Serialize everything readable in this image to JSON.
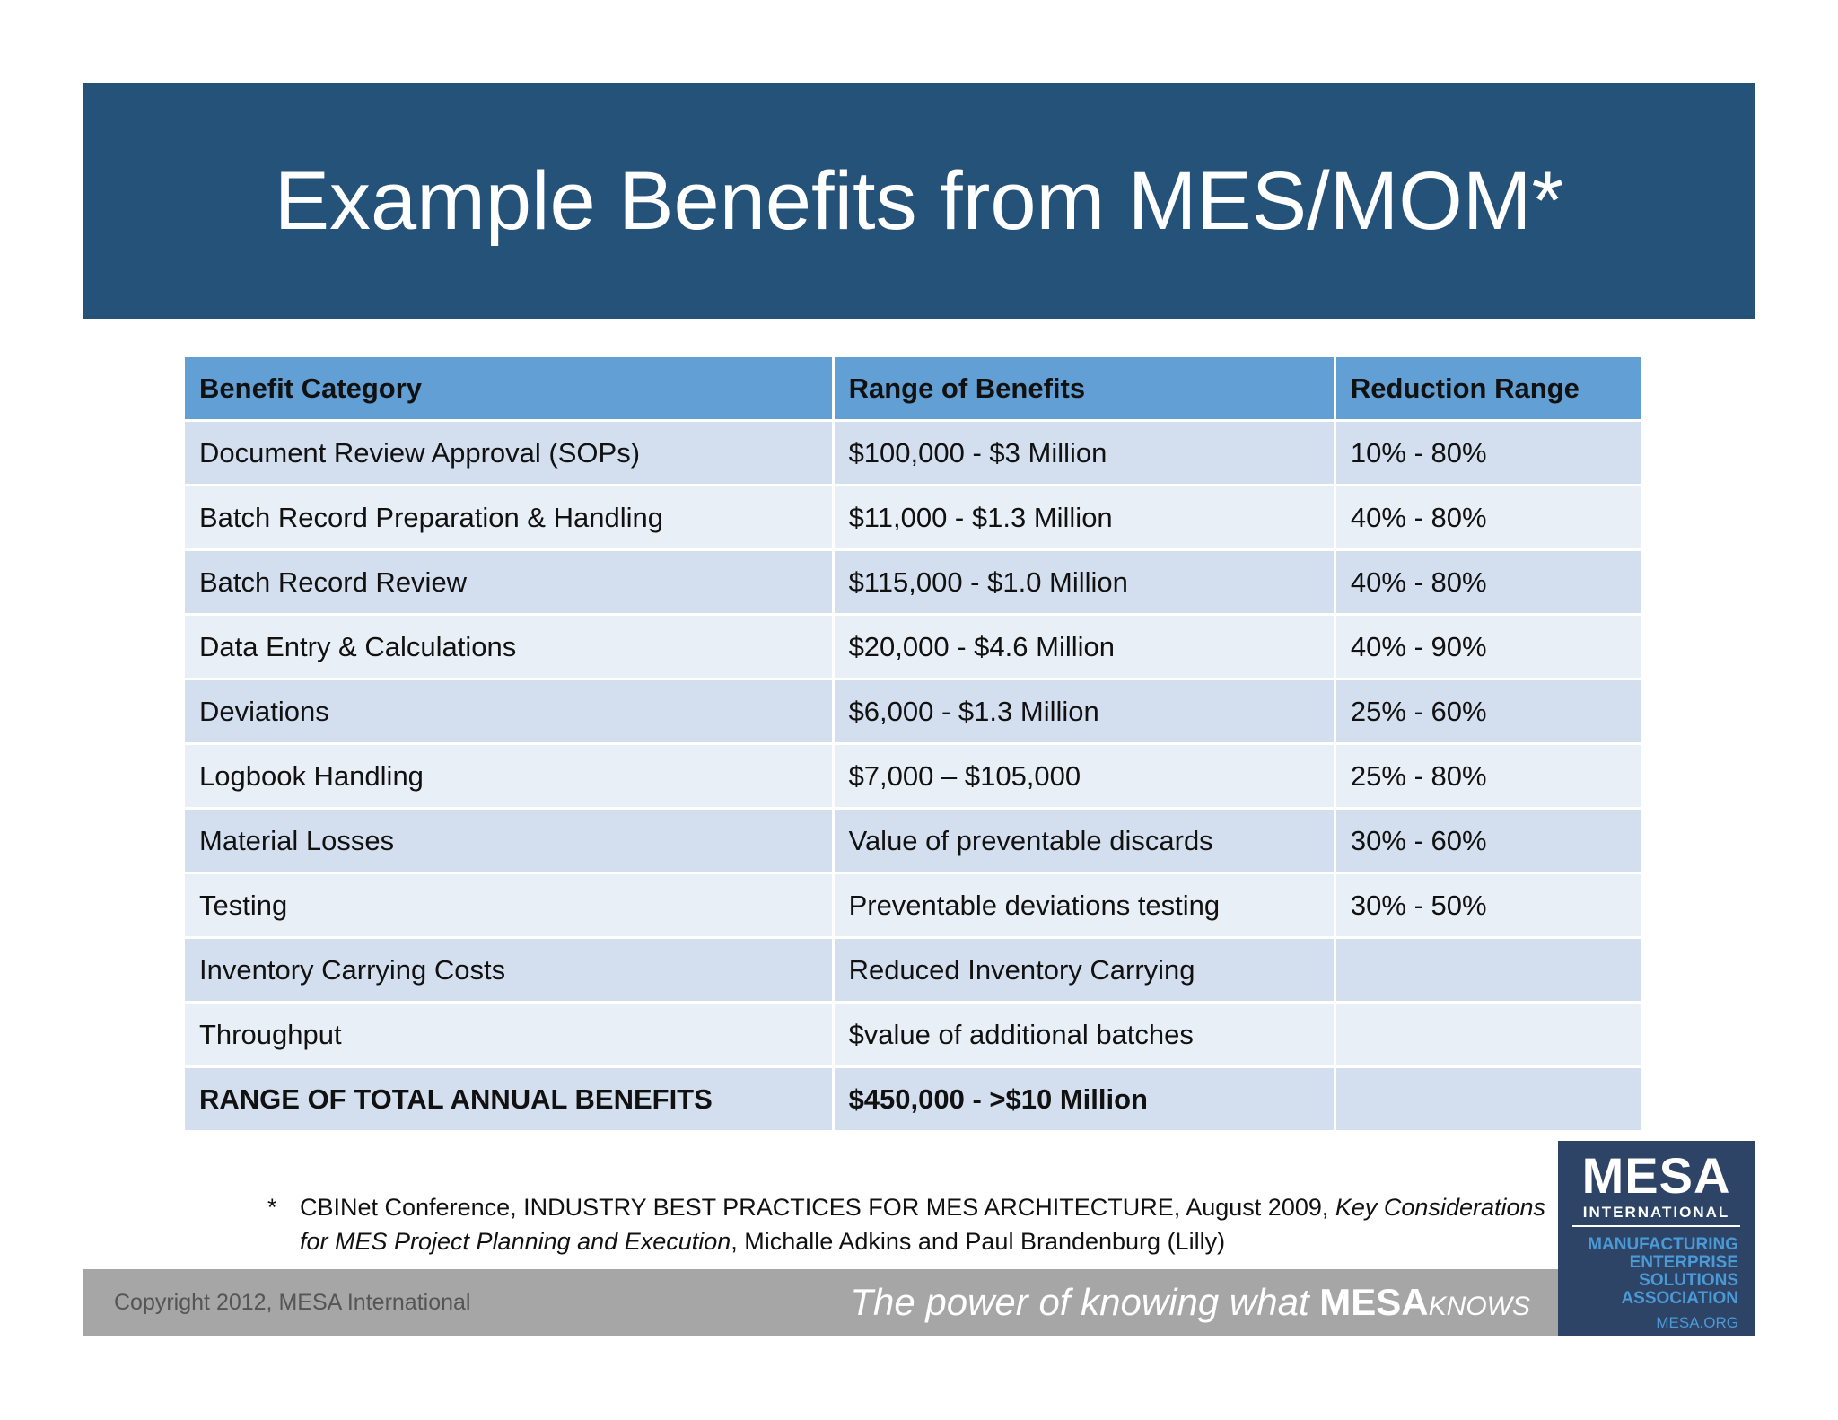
{
  "header": {
    "title": "Example Benefits from MES/MOM*"
  },
  "table": {
    "columns": [
      "Benefit Category",
      "Range of Benefits",
      "Reduction Range"
    ],
    "rows": [
      [
        "Document Review Approval (SOPs)",
        "$100,000 - $3 Million",
        "10% - 80%"
      ],
      [
        "Batch Record Preparation & Handling",
        "$11,000 - $1.3 Million",
        "40% - 80%"
      ],
      [
        "Batch Record Review",
        "$115,000 - $1.0 Million",
        "40% - 80%"
      ],
      [
        "Data Entry & Calculations",
        "$20,000 - $4.6 Million",
        "40% - 90%"
      ],
      [
        "Deviations",
        "$6,000 - $1.3 Million",
        "25% - 60%"
      ],
      [
        "Logbook Handling",
        "$7,000 – $105,000",
        "25% - 80%"
      ],
      [
        "Material Losses",
        "Value of preventable discards",
        "30% - 60%"
      ],
      [
        "Testing",
        "Preventable deviations testing",
        "30% - 50%"
      ],
      [
        "Inventory Carrying Costs",
        "Reduced Inventory Carrying"
      ],
      [
        "Throughput",
        "$value of additional batches"
      ],
      [
        "RANGE OF TOTAL ANNUAL BENEFITS",
        "$450,000 - >$10 Million"
      ]
    ]
  },
  "footnote": {
    "marker": "*",
    "text": "CBINet Conference, INDUSTRY BEST PRACTICES FOR MES ARCHITECTURE, August 2009,",
    "italic": "Key Considerations for MES Project Planning and Execution",
    "authors": ", Michalle Adkins and Paul Brandenburg (Lilly)"
  },
  "footer": {
    "copyright": "Copyright 2012, MESA International",
    "tagline": "The power of knowing what",
    "brand": "MESA",
    "brand_suffix": "KNOWS"
  },
  "logo": {
    "name": "MESA",
    "sub": "INTERNATIONAL",
    "lines": [
      "MANUFACTURING",
      "ENTERPRISE",
      "SOLUTIONS",
      "ASSOCIATION"
    ],
    "url": "MESA.ORG"
  }
}
